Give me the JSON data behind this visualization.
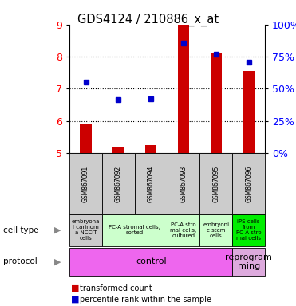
{
  "title": "GDS4124 / 210886_x_at",
  "samples": [
    "GSM867091",
    "GSM867092",
    "GSM867094",
    "GSM867093",
    "GSM867095",
    "GSM867096"
  ],
  "transformed_counts": [
    5.9,
    5.2,
    5.25,
    9.0,
    8.1,
    7.55
  ],
  "percentile_ranks": [
    7.2,
    6.65,
    6.68,
    8.42,
    8.07,
    7.82
  ],
  "ylim": [
    5,
    9
  ],
  "y_ticks": [
    5,
    6,
    7,
    8,
    9
  ],
  "bar_color": "#cc0000",
  "dot_color": "#0000cc",
  "cell_type_data": [
    {
      "text": "embryona\nl carinom\na NCCIT\ncells",
      "start": 0,
      "end": 1,
      "color": "#cccccc"
    },
    {
      "text": "PC-A stromal cells,\nsorted",
      "start": 1,
      "end": 3,
      "color": "#ccffcc"
    },
    {
      "text": "PC-A stro\nmal cells,\ncultured",
      "start": 3,
      "end": 4,
      "color": "#ccffcc"
    },
    {
      "text": "embryoni\nc stem\ncells",
      "start": 4,
      "end": 5,
      "color": "#ccffcc"
    },
    {
      "text": "iPS cells\nfrom\nPC-A stro\nmal cells",
      "start": 5,
      "end": 6,
      "color": "#00ee00"
    }
  ],
  "protocol_data": [
    {
      "text": "control",
      "start": 0,
      "end": 5,
      "color": "#ee66ee"
    },
    {
      "text": "reprogram\nming",
      "start": 5,
      "end": 6,
      "color": "#ddaadd"
    }
  ],
  "n": 6
}
